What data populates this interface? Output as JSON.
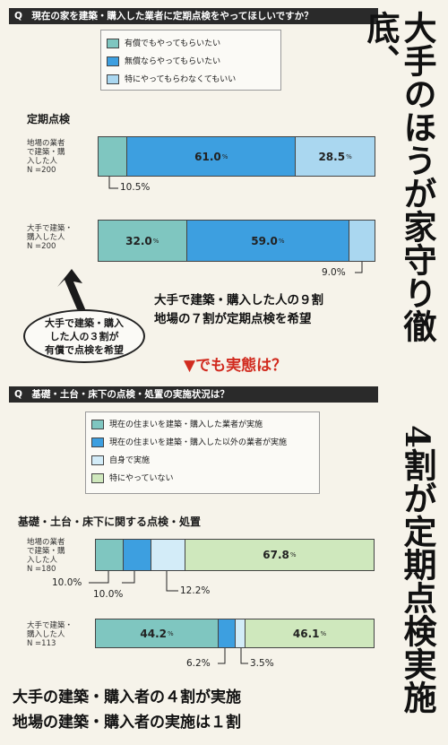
{
  "title_vertical_1": "大手のほうが家守り徹底、",
  "title_vertical_2": "4割が定期点検実施",
  "colors": {
    "teal": "#7fc6c0",
    "blue": "#3d9fe0",
    "lightblue": "#aad7f0",
    "lightgreen": "#cfe8bd",
    "dark": "#2a2a2a",
    "red": "#d12b1f"
  },
  "q1": {
    "question": "Q　現在の家を建築・購入した業者に定期点検をやってほしいですか？",
    "legend": [
      {
        "label": "有償でもやってもらいたい",
        "color": "#7fc6c0"
      },
      {
        "label": "無償ならやってもらいたい",
        "color": "#3d9fe0"
      },
      {
        "label": "特にやってもらわなくてもいい",
        "color": "#aad7f0"
      }
    ],
    "section_title": "定期点検"
  },
  "q2": {
    "question": "Q　基礎・土台・床下の点検・処置の実施状況は？",
    "legend": [
      {
        "label": "現在の住まいを建築・購入した業者が実施",
        "color": "#7fc6c0"
      },
      {
        "label": "現在の住まいを建築・購入した以外の業者が実施",
        "color": "#3d9fe0"
      },
      {
        "label": "自身で実施",
        "color": "#d3ecf8"
      },
      {
        "label": "特にやっていない",
        "color": "#cfe8bd"
      }
    ],
    "section_title": "基礎・土台・床下に関する点検・処置"
  },
  "chart_data": [
    {
      "type": "bar",
      "stacked": true,
      "orientation": "horizontal",
      "title": "定期点検",
      "unit": "%",
      "categories": [
        "地場の業者で建築・購入した人 N=200",
        "大手で建築・購入した人 N=200"
      ],
      "series": [
        {
          "name": "有償でもやってもらいたい",
          "values": [
            10.5,
            32.0
          ]
        },
        {
          "name": "無償ならやってもらいたい",
          "values": [
            61.0,
            59.0
          ]
        },
        {
          "name": "特にやってもらわなくてもいい",
          "values": [
            28.5,
            9.0
          ]
        }
      ]
    },
    {
      "type": "bar",
      "stacked": true,
      "orientation": "horizontal",
      "title": "基礎・土台・床下に関する点検・処置",
      "unit": "%",
      "categories": [
        "地場の業者で建築・購入した人 N=180",
        "大手で建築・購入した人 N=113"
      ],
      "series": [
        {
          "name": "現在の住まいを建築・購入した業者が実施",
          "values": [
            10.0,
            44.2
          ]
        },
        {
          "name": "現在の住まいを建築・購入した以外の業者が実施",
          "values": [
            10.0,
            6.2
          ]
        },
        {
          "name": "自身で実施",
          "values": [
            12.2,
            3.5
          ]
        },
        {
          "name": "特にやっていない",
          "values": [
            67.8,
            46.1
          ]
        }
      ]
    }
  ],
  "bars": {
    "b1": {
      "cat": "地場の業者\nで建築・購\n入した人\nN =200",
      "segments": [
        {
          "label": "",
          "value": 10.5,
          "color": "#7fc6c0"
        },
        {
          "label": "61.0",
          "value": 61.0,
          "color": "#3d9fe0"
        },
        {
          "label": "28.5",
          "value": 28.5,
          "color": "#aad7f0"
        }
      ],
      "callout": "10.5%"
    },
    "b2": {
      "cat": "大手で建築・\n購入した人\nN =200",
      "segments": [
        {
          "label": "32.0",
          "value": 32.0,
          "color": "#7fc6c0"
        },
        {
          "label": "59.0",
          "value": 59.0,
          "color": "#3d9fe0"
        },
        {
          "label": "",
          "value": 9.0,
          "color": "#aad7f0"
        }
      ],
      "callout": "9.0%"
    },
    "b3": {
      "cat": "地場の業者\nで建築・購\n入した人\nN =180",
      "segments": [
        {
          "label": "",
          "value": 10.0,
          "color": "#7fc6c0"
        },
        {
          "label": "",
          "value": 10.0,
          "color": "#3d9fe0"
        },
        {
          "label": "",
          "value": 12.2,
          "color": "#d3ecf8"
        },
        {
          "label": "67.8",
          "value": 67.8,
          "color": "#cfe8bd"
        }
      ],
      "callouts": [
        "10.0%",
        "10.0%",
        "12.2%"
      ]
    },
    "b4": {
      "cat": "大手で建築・\n購入した人\nN =113",
      "segments": [
        {
          "label": "44.2",
          "value": 44.2,
          "color": "#7fc6c0"
        },
        {
          "label": "",
          "value": 6.2,
          "color": "#3d9fe0"
        },
        {
          "label": "",
          "value": 3.5,
          "color": "#d3ecf8"
        },
        {
          "label": "46.1",
          "value": 46.1,
          "color": "#cfe8bd"
        }
      ],
      "callouts": [
        "6.2%",
        "3.5%"
      ]
    }
  },
  "pct_symbol": "%",
  "headline_1": "大手で建築・購入した人の９割",
  "headline_2": "地場の７割が定期点検を希望",
  "bubble_text": "大手で建築・購入\nした人の３割が\n有償で点検を希望",
  "red_text": "▼でも実態は？",
  "footer_1": "大手の建築・購入者の４割が実施",
  "footer_2": "地場の建築・購入者の実施は１割"
}
